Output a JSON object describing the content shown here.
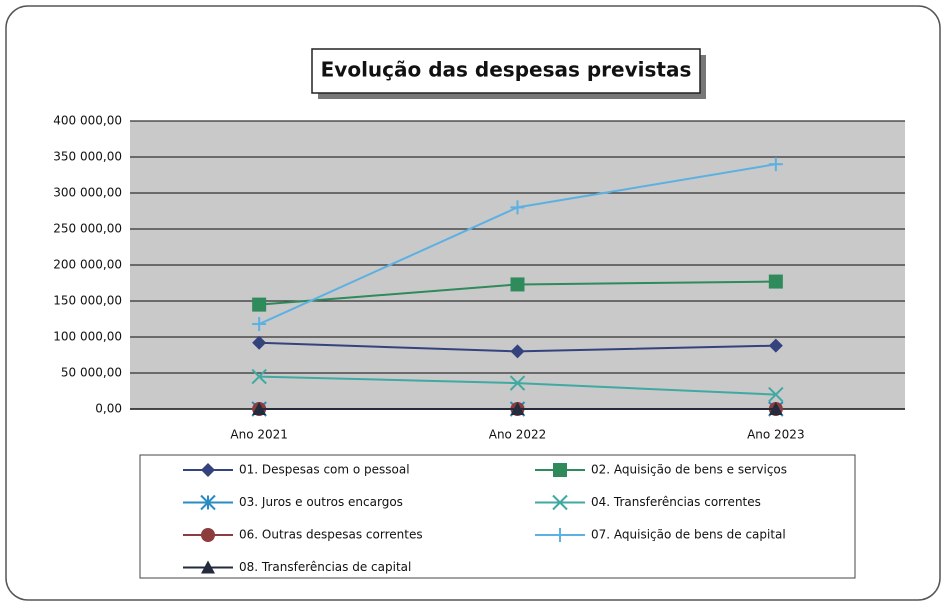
{
  "chart_data": {
    "type": "line",
    "title": "Evolução das despesas previstas",
    "categories": [
      "Ano 2021",
      "Ano 2022",
      "Ano 2023"
    ],
    "series": [
      {
        "name": "01. Despesas com o pessoal",
        "color": "#34437e",
        "marker": "diamond",
        "values": [
          92000,
          80000,
          88000
        ]
      },
      {
        "name": "02. Aquisição de bens e serviços",
        "color": "#2f8a5c",
        "marker": "square",
        "values": [
          145000,
          173000,
          177000
        ]
      },
      {
        "name": "03. Juros e outros encargos",
        "color": "#2a8cc4",
        "marker": "asterisk",
        "values": [
          0,
          0,
          0
        ]
      },
      {
        "name": "04. Transferências correntes",
        "color": "#3fa9a2",
        "marker": "x",
        "values": [
          45000,
          36000,
          20000
        ]
      },
      {
        "name": "06. Outras despesas correntes",
        "color": "#8c3c3c",
        "marker": "circle",
        "values": [
          0,
          0,
          0
        ]
      },
      {
        "name": "07. Aquisição de bens de capital",
        "color": "#5cb0e2",
        "marker": "plus",
        "values": [
          118000,
          280000,
          340000
        ]
      },
      {
        "name": "08. Transferências de capital",
        "color": "#232b3c",
        "marker": "triangle",
        "values": [
          0,
          0,
          0
        ]
      }
    ],
    "ylim": [
      0,
      400000
    ],
    "yticks": [
      {
        "value": 0,
        "label": "0,00"
      },
      {
        "value": 50000,
        "label": "50 000,00"
      },
      {
        "value": 100000,
        "label": "100 000,00"
      },
      {
        "value": 150000,
        "label": "150 000,00"
      },
      {
        "value": 200000,
        "label": "200 000,00"
      },
      {
        "value": 250000,
        "label": "250 000,00"
      },
      {
        "value": 300000,
        "label": "300 000,00"
      },
      {
        "value": 350000,
        "label": "350 000,00"
      },
      {
        "value": 400000,
        "label": "400 000,00"
      }
    ],
    "grid": true
  }
}
